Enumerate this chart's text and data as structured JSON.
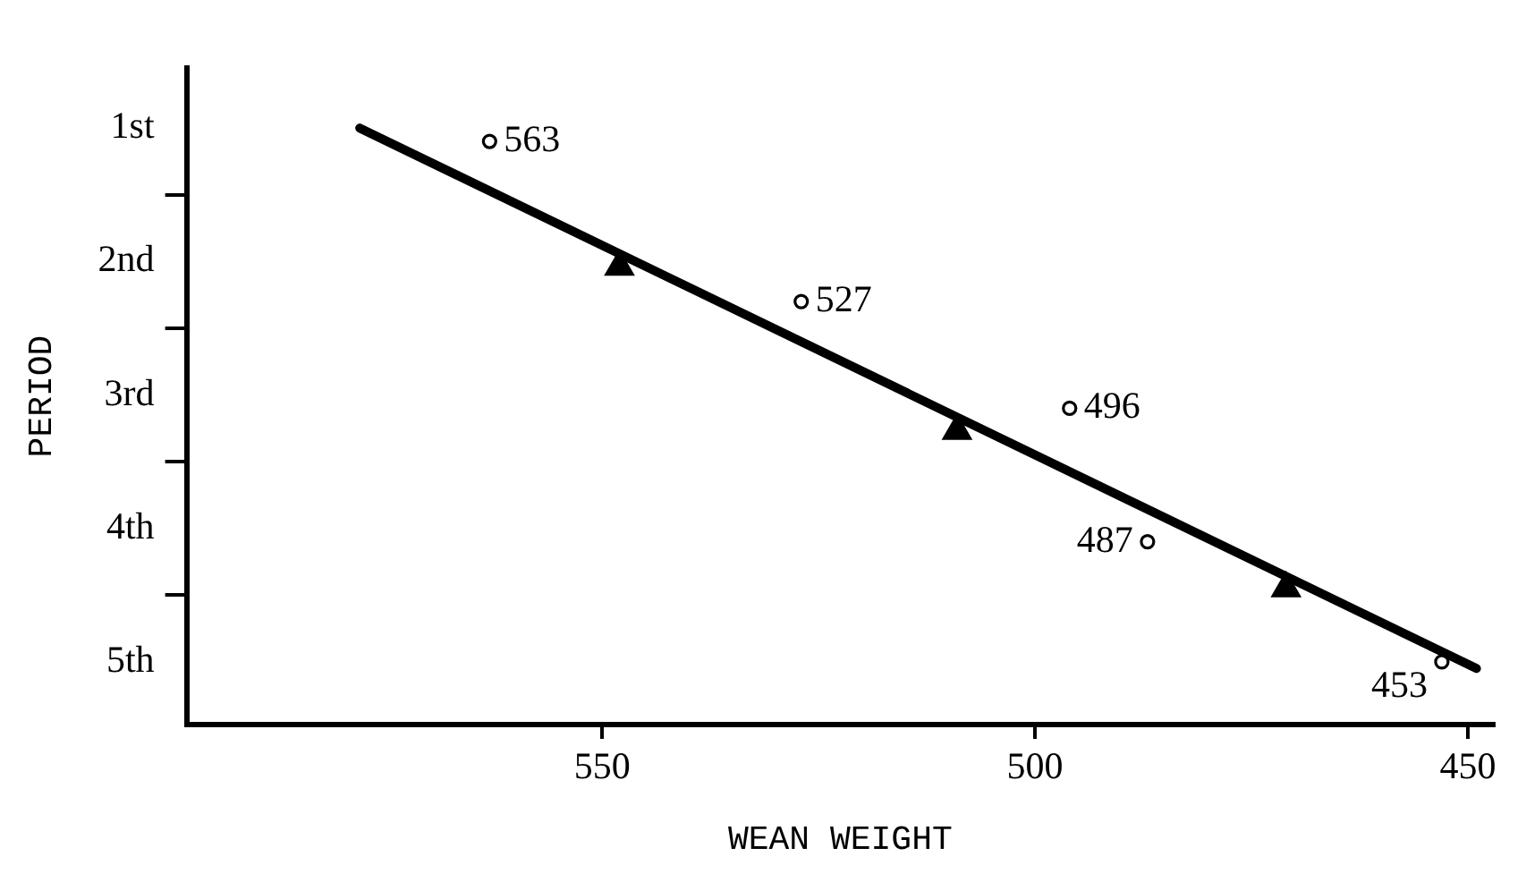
{
  "chart_data": {
    "type": "scatter",
    "xlabel": "WEAN WEIGHT",
    "ylabel": "PERIOD",
    "xlim": [
      598,
      447
    ],
    "ylim": [
      5.47,
      0.55
    ],
    "xticks": [
      550,
      500,
      450
    ],
    "yticks": [
      {
        "value": 1,
        "label": "1st"
      },
      {
        "value": 1.5,
        "label": null
      },
      {
        "value": 2,
        "label": "2nd"
      },
      {
        "value": 2.5,
        "label": null
      },
      {
        "value": 3,
        "label": "3rd"
      },
      {
        "value": 3.5,
        "label": null
      },
      {
        "value": 4,
        "label": "4th"
      },
      {
        "value": 4.5,
        "label": null
      },
      {
        "value": 5,
        "label": "5th"
      }
    ],
    "grid": false,
    "legend": false,
    "series": [
      {
        "type": "line",
        "color": "#000000",
        "x": [
          578,
          449
        ],
        "values": [
          1.0,
          5.05
        ],
        "marker": "none"
      },
      {
        "type": "scatter",
        "color": "#000000",
        "x": [
          548,
          509,
          471
        ],
        "values": [
          2.04,
          3.27,
          4.45
        ],
        "marker": "triangle"
      },
      {
        "type": "scatter",
        "color": "#000000",
        "x": [
          563,
          527,
          496,
          487,
          453
        ],
        "values": [
          1.1,
          2.3,
          3.1,
          4.1,
          5.0
        ],
        "marker": "circle"
      }
    ],
    "annotations": [
      {
        "text": "563",
        "x": 563,
        "y": 1.1
      },
      {
        "text": "527",
        "x": 527,
        "y": 2.3
      },
      {
        "text": "496",
        "x": 496,
        "y": 3.1
      },
      {
        "text": "487",
        "x": 487,
        "y": 4.1
      },
      {
        "text": "453",
        "x": 453,
        "y": 5.0
      }
    ]
  }
}
